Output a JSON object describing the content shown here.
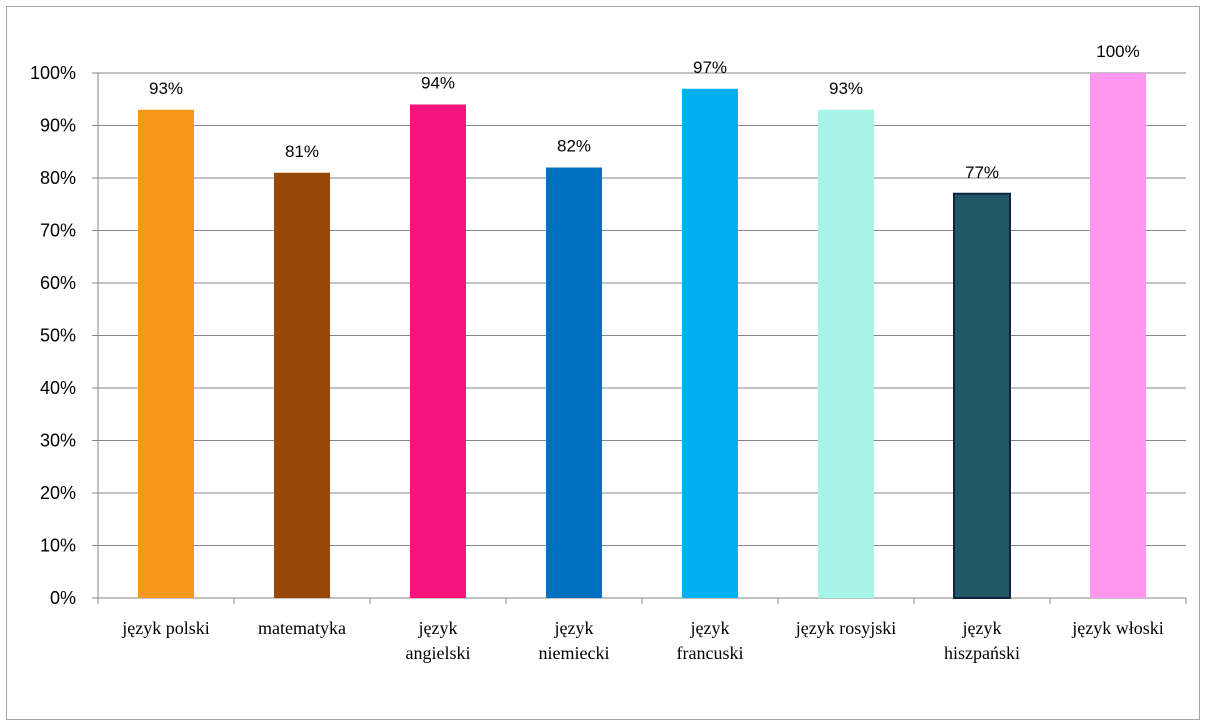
{
  "chart_data": {
    "type": "bar",
    "title": "",
    "xlabel": "",
    "ylabel": "",
    "ylim": [
      0,
      100
    ],
    "y_ticks": [
      "0%",
      "10%",
      "20%",
      "30%",
      "40%",
      "50%",
      "60%",
      "70%",
      "80%",
      "90%",
      "100%"
    ],
    "grid": true,
    "legend": "none",
    "categories": [
      [
        "język polski"
      ],
      [
        "matematyka"
      ],
      [
        "język",
        "angielski"
      ],
      [
        "język",
        "niemiecki"
      ],
      [
        "język",
        "francuski"
      ],
      [
        "język rosyjski"
      ],
      [
        "język",
        "hiszpański"
      ],
      [
        "język włoski"
      ]
    ],
    "values": [
      93,
      81,
      94,
      82,
      97,
      93,
      77,
      100
    ],
    "data_labels": [
      "93%",
      "81%",
      "94%",
      "82%",
      "97%",
      "93%",
      "77%",
      "100%"
    ],
    "colors": [
      "#F7971B",
      "#974806",
      "#F5147C",
      "#0070C0",
      "#00B0F0",
      "#A6F4E6",
      "#215868",
      "#FF97EE"
    ],
    "outline_colors": [
      "none",
      "none",
      "none",
      "none",
      "none",
      "none",
      "#0F243E",
      "none"
    ]
  }
}
